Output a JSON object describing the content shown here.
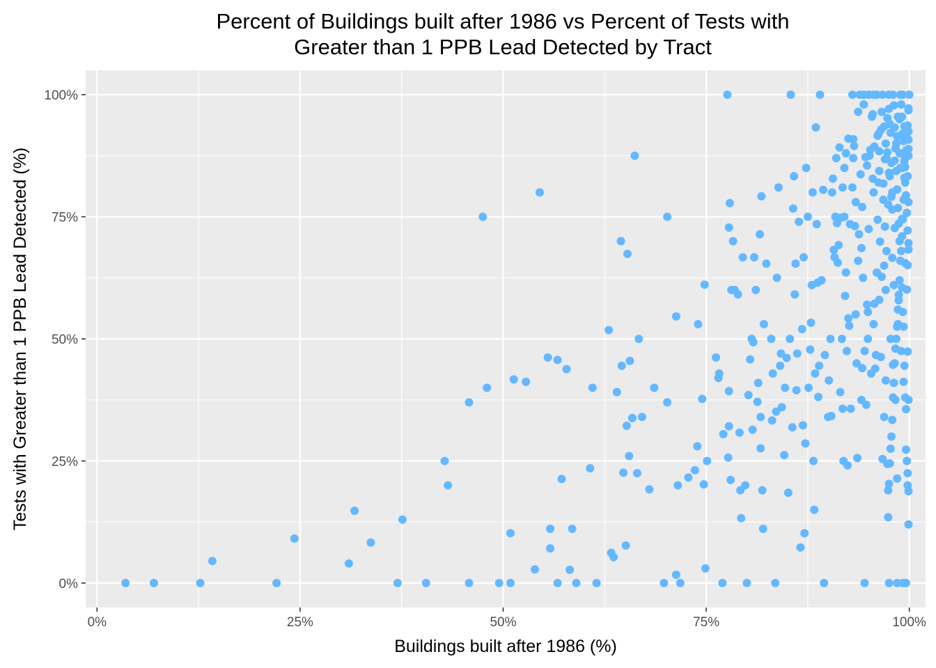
{
  "chart_data": {
    "type": "scatter",
    "title": [
      "Percent of Buildings built after 1986 vs Percent of Tests with",
      "Greater than 1 PPB Lead Detected by Tract"
    ],
    "xlabel": "Buildings built after 1986 (%)",
    "ylabel": "Tests with Greater than 1 PPB Lead Detected (%)",
    "x_ticks": [
      "0%",
      "25%",
      "50%",
      "75%",
      "100%"
    ],
    "y_ticks": [
      "0%",
      "25%",
      "50%",
      "75%",
      "100%"
    ],
    "xlim": [
      -1.4,
      102
    ],
    "ylim": [
      -5,
      105
    ],
    "grid": true,
    "legend": "none",
    "colors": {
      "point": "#63b8ff",
      "panel": "#ebebeb",
      "grid": "#ffffff"
    },
    "points": [
      [
        3.5,
        0
      ],
      [
        7,
        0
      ],
      [
        12.7,
        0
      ],
      [
        22.1,
        0
      ],
      [
        37,
        0
      ],
      [
        40.5,
        0
      ],
      [
        45.8,
        0
      ],
      [
        49.5,
        0
      ],
      [
        50.9,
        0
      ],
      [
        56.7,
        0
      ],
      [
        59,
        0
      ],
      [
        61.5,
        0
      ],
      [
        69.8,
        0
      ],
      [
        71.8,
        0
      ],
      [
        77,
        0
      ],
      [
        80,
        0
      ],
      [
        83.5,
        0
      ],
      [
        89.5,
        0
      ],
      [
        94.5,
        0
      ],
      [
        97.5,
        0
      ],
      [
        98.5,
        0
      ],
      [
        99.2,
        0
      ],
      [
        99.6,
        0
      ],
      [
        14.2,
        4.5
      ],
      [
        24.3,
        9.1
      ],
      [
        31,
        4
      ],
      [
        31.7,
        14.8
      ],
      [
        33.7,
        8.3
      ],
      [
        37.6,
        13
      ],
      [
        42.8,
        25
      ],
      [
        43.2,
        20
      ],
      [
        45.8,
        37
      ],
      [
        47.5,
        75
      ],
      [
        48,
        40
      ],
      [
        50.9,
        10.2
      ],
      [
        51.3,
        41.7
      ],
      [
        52.8,
        41.2
      ],
      [
        54.5,
        80
      ],
      [
        55.5,
        46.2
      ],
      [
        55.8,
        11.1
      ],
      [
        55.8,
        7.1
      ],
      [
        56.7,
        45.7
      ],
      [
        57.2,
        21.3
      ],
      [
        57.8,
        43.8
      ],
      [
        58.2,
        2.7
      ],
      [
        58.5,
        11.1
      ],
      [
        53.9,
        2.8
      ],
      [
        60.7,
        23.5
      ],
      [
        61,
        40
      ],
      [
        63,
        51.8
      ],
      [
        63.3,
        6.2
      ],
      [
        63.6,
        5.3
      ],
      [
        64,
        39.1
      ],
      [
        64.5,
        70
      ],
      [
        64.6,
        44.5
      ],
      [
        64.8,
        22.6
      ],
      [
        65.1,
        7.7
      ],
      [
        65.2,
        32.2
      ],
      [
        65.3,
        67.4
      ],
      [
        65.5,
        26
      ],
      [
        65.6,
        45.5
      ],
      [
        65.9,
        33.8
      ],
      [
        66.2,
        87.5
      ],
      [
        66.5,
        22.5
      ],
      [
        66.7,
        50
      ],
      [
        67.1,
        34
      ],
      [
        68,
        19.2
      ],
      [
        68.6,
        40
      ],
      [
        70.2,
        75
      ],
      [
        70.2,
        37
      ],
      [
        71.3,
        54.6
      ],
      [
        71.3,
        1.7
      ],
      [
        71.5,
        20
      ],
      [
        72.8,
        21.6
      ],
      [
        73.6,
        23.1
      ],
      [
        73.9,
        28
      ],
      [
        74,
        53
      ],
      [
        74.5,
        37.7
      ],
      [
        74.7,
        20.2
      ],
      [
        74.9,
        3
      ],
      [
        74.8,
        61.1
      ],
      [
        75.1,
        25
      ],
      [
        76.2,
        46.2
      ],
      [
        76.5,
        42
      ],
      [
        76.6,
        42.9
      ],
      [
        77.1,
        30.5
      ],
      [
        77.6,
        100
      ],
      [
        77.8,
        39.3
      ],
      [
        77.8,
        32.1
      ],
      [
        77.7,
        25.7
      ],
      [
        77.9,
        77.8
      ],
      [
        77.8,
        72.8
      ],
      [
        78.1,
        60
      ],
      [
        78,
        21.1
      ],
      [
        78.3,
        70
      ],
      [
        78.5,
        60
      ],
      [
        78.9,
        59.1
      ],
      [
        79.1,
        30.8
      ],
      [
        79.2,
        19
      ],
      [
        79.3,
        13.3
      ],
      [
        79.5,
        66.7
      ],
      [
        79.8,
        20
      ],
      [
        80.2,
        38.5
      ],
      [
        80.4,
        45.8
      ],
      [
        80.6,
        50
      ],
      [
        80.7,
        31.4
      ],
      [
        80.8,
        49.3
      ],
      [
        80.9,
        66.7
      ],
      [
        81.1,
        60
      ],
      [
        81.3,
        37.1
      ],
      [
        81.4,
        41
      ],
      [
        81.6,
        71.4
      ],
      [
        81.7,
        34
      ],
      [
        81.7,
        27.6
      ],
      [
        81.8,
        79.2
      ],
      [
        81.9,
        19
      ],
      [
        82,
        11.1
      ],
      [
        82.1,
        53
      ],
      [
        82.4,
        65.4
      ],
      [
        83,
        50
      ],
      [
        83.1,
        33.3
      ],
      [
        83.2,
        42.9
      ],
      [
        83.6,
        35.1
      ],
      [
        83.7,
        62.5
      ],
      [
        83.9,
        81
      ],
      [
        84.1,
        44.5
      ],
      [
        84.2,
        47
      ],
      [
        84.3,
        36
      ],
      [
        84.6,
        26.2
      ],
      [
        84.7,
        40
      ],
      [
        84.9,
        46.1
      ],
      [
        85.1,
        18.5
      ],
      [
        85.3,
        50
      ],
      [
        85.4,
        100
      ],
      [
        85.6,
        31.9
      ],
      [
        85.7,
        76.7
      ],
      [
        85.8,
        83.3
      ],
      [
        85.9,
        59.1
      ],
      [
        86,
        65.4
      ],
      [
        86.1,
        39.5
      ],
      [
        86.2,
        47
      ],
      [
        86.4,
        74
      ],
      [
        86.6,
        7.3
      ],
      [
        86.8,
        52
      ],
      [
        86.9,
        32.3
      ],
      [
        87,
        66.7
      ],
      [
        87.1,
        10.2
      ],
      [
        87.2,
        28.6
      ],
      [
        87.3,
        85
      ],
      [
        87.5,
        75
      ],
      [
        87.6,
        40
      ],
      [
        87.8,
        47.8
      ],
      [
        87.9,
        53.3
      ],
      [
        88,
        61
      ],
      [
        88.1,
        80
      ],
      [
        88.2,
        25
      ],
      [
        88.3,
        15
      ],
      [
        88.4,
        42.9
      ],
      [
        88.5,
        93.3
      ],
      [
        88.6,
        73.5
      ],
      [
        88.7,
        61.5
      ],
      [
        88.8,
        38.1
      ],
      [
        88.9,
        44.5
      ],
      [
        89,
        100
      ],
      [
        89.2,
        62
      ],
      [
        89.4,
        80.5
      ],
      [
        89.6,
        46.7
      ],
      [
        90,
        34
      ],
      [
        90.1,
        41.5
      ],
      [
        90.3,
        50
      ],
      [
        90.4,
        34.2
      ],
      [
        90.5,
        80
      ],
      [
        90.6,
        82.8
      ],
      [
        90.7,
        68.2
      ],
      [
        90.8,
        66.7
      ],
      [
        90.9,
        75
      ],
      [
        91,
        87
      ],
      [
        91.1,
        73.7
      ],
      [
        91.2,
        65.6
      ],
      [
        91.3,
        69.2
      ],
      [
        91.4,
        89.2
      ],
      [
        91.5,
        39.1
      ],
      [
        91.6,
        74.8
      ],
      [
        91.7,
        50
      ],
      [
        91.8,
        35.7
      ],
      [
        91.9,
        25
      ],
      [
        92,
        75
      ],
      [
        92.1,
        58.8
      ],
      [
        92.2,
        63.6
      ],
      [
        92.3,
        47.5
      ],
      [
        92.4,
        24.1
      ],
      [
        92.5,
        54.2
      ],
      [
        92.6,
        52.7
      ],
      [
        92.7,
        73.5
      ],
      [
        92.8,
        35.7
      ],
      [
        93,
        81
      ],
      [
        93.1,
        90.9
      ],
      [
        93.2,
        89.5
      ],
      [
        93.3,
        73.1
      ],
      [
        93.4,
        55
      ],
      [
        93.5,
        45
      ],
      [
        93.6,
        25.6
      ],
      [
        93.7,
        66
      ],
      [
        93.8,
        71.4
      ],
      [
        93.9,
        100
      ],
      [
        94,
        83.7
      ],
      [
        94.1,
        68.6
      ],
      [
        94.2,
        44
      ],
      [
        94.3,
        62.5
      ],
      [
        94.4,
        100
      ],
      [
        94.5,
        47.5
      ],
      [
        94.6,
        87.2
      ],
      [
        94.7,
        36.5
      ],
      [
        94.8,
        57
      ],
      [
        94.9,
        55.5
      ],
      [
        95,
        72.5
      ],
      [
        95.1,
        87.5
      ],
      [
        95.2,
        88.7
      ],
      [
        95.3,
        42.9
      ],
      [
        95.4,
        95.5
      ],
      [
        95.5,
        82.8
      ],
      [
        95.6,
        80
      ],
      [
        95.7,
        57.2
      ],
      [
        95.8,
        43.9
      ],
      [
        95.9,
        46.7
      ],
      [
        96,
        63.6
      ],
      [
        96.1,
        74.4
      ],
      [
        96.2,
        92
      ],
      [
        96.3,
        88.4
      ],
      [
        96.4,
        69.9
      ],
      [
        96.5,
        46.3
      ],
      [
        96.6,
        62.7
      ],
      [
        96.7,
        25.4
      ],
      [
        96.8,
        81.8
      ],
      [
        96.9,
        34
      ],
      [
        97,
        86.8
      ],
      [
        97.1,
        41.5
      ],
      [
        97.2,
        68
      ],
      [
        97.3,
        24.4
      ],
      [
        97.4,
        19
      ],
      [
        97.5,
        100
      ],
      [
        97.6,
        83.3
      ],
      [
        97.7,
        50
      ],
      [
        97.8,
        79.1
      ],
      [
        97.9,
        66.6
      ],
      [
        98,
        44.7
      ],
      [
        98.1,
        61
      ],
      [
        98.2,
        72.7
      ],
      [
        98.3,
        37.5
      ],
      [
        98.4,
        90
      ],
      [
        98.5,
        21.4
      ],
      [
        98.6,
        53
      ],
      [
        98.7,
        57.9
      ],
      [
        98.8,
        95
      ],
      [
        98.9,
        85
      ],
      [
        99,
        47.5
      ],
      [
        99.1,
        74.6
      ],
      [
        99.2,
        100
      ],
      [
        99.3,
        41.2
      ],
      [
        99.4,
        86.4
      ],
      [
        99.5,
        65.5
      ],
      [
        99.6,
        35.6
      ],
      [
        99.7,
        60.1
      ],
      [
        99.8,
        22.5
      ],
      [
        99.9,
        88.9
      ],
      [
        95.5,
        96
      ],
      [
        96.1,
        91.6
      ],
      [
        96.3,
        84.4
      ],
      [
        96.5,
        92.8
      ],
      [
        96.7,
        100
      ],
      [
        96.9,
        93.5
      ],
      [
        97.1,
        90
      ],
      [
        97.3,
        88.2
      ],
      [
        97.5,
        97.1
      ],
      [
        97.6,
        94
      ],
      [
        97.7,
        92.2
      ],
      [
        97.8,
        86
      ],
      [
        97.9,
        76.5
      ],
      [
        98,
        100
      ],
      [
        98.1,
        97.8
      ],
      [
        98.2,
        93.3
      ],
      [
        98.3,
        89
      ],
      [
        98.4,
        84.4
      ],
      [
        98.5,
        80.6
      ],
      [
        98.6,
        76.8
      ],
      [
        98.7,
        73.6
      ],
      [
        98.8,
        70
      ],
      [
        98.9,
        100
      ],
      [
        99,
        98
      ],
      [
        99.1,
        95.5
      ],
      [
        99.2,
        92
      ],
      [
        99.3,
        90.5
      ],
      [
        99.4,
        87.5
      ],
      [
        99.5,
        82
      ],
      [
        99.6,
        79.4
      ],
      [
        99.7,
        75.8
      ],
      [
        99.8,
        72.2
      ],
      [
        99.9,
        69.6
      ],
      [
        100,
        100
      ],
      [
        99.9,
        96.8
      ],
      [
        99.8,
        93.7
      ],
      [
        99.7,
        91.2
      ],
      [
        99.6,
        88.6
      ],
      [
        99.5,
        85.2
      ],
      [
        99.4,
        83
      ],
      [
        99.3,
        78.5
      ],
      [
        99.2,
        74.5
      ],
      [
        99.1,
        71
      ],
      [
        99,
        68
      ],
      [
        98.9,
        66
      ],
      [
        98.8,
        62
      ],
      [
        98.7,
        59
      ],
      [
        98.6,
        56
      ],
      [
        98.5,
        52.5
      ],
      [
        98.4,
        50
      ],
      [
        98.3,
        48
      ],
      [
        98.2,
        45
      ],
      [
        98.1,
        41
      ],
      [
        98,
        38
      ],
      [
        97.9,
        33.4
      ],
      [
        97.8,
        30
      ],
      [
        97.7,
        27.5
      ],
      [
        97.6,
        24.5
      ],
      [
        97.5,
        20.3
      ],
      [
        97.4,
        13.5
      ],
      [
        99.9,
        12
      ],
      [
        99.8,
        20
      ],
      [
        99.7,
        25
      ],
      [
        99.6,
        27.3
      ],
      [
        99.5,
        38
      ],
      [
        99.4,
        44.5
      ],
      [
        99.3,
        52.5
      ],
      [
        99.2,
        55.5
      ],
      [
        99.1,
        60.5
      ],
      [
        99.9,
        37.5
      ],
      [
        99.8,
        47.4
      ],
      [
        99.9,
        18.8
      ],
      [
        99.8,
        65.1
      ],
      [
        99.8,
        83.3
      ],
      [
        99.9,
        78
      ],
      [
        99.9,
        68.3
      ],
      [
        99.9,
        90.8
      ],
      [
        99.9,
        92.5
      ],
      [
        99.9,
        87.5
      ],
      [
        99.9,
        97.2
      ],
      [
        96,
        100
      ],
      [
        95.6,
        100
      ],
      [
        95,
        100
      ],
      [
        94.4,
        98
      ],
      [
        93.7,
        96.5
      ],
      [
        93,
        100
      ],
      [
        92.5,
        91
      ],
      [
        92,
        85
      ],
      [
        91.8,
        81
      ],
      [
        92.2,
        88
      ],
      [
        93.1,
        87
      ],
      [
        93.4,
        78
      ],
      [
        94.2,
        77
      ],
      [
        94.8,
        85.5
      ],
      [
        95.7,
        89.4
      ],
      [
        96.2,
        82
      ],
      [
        96.8,
        78.5
      ],
      [
        97.2,
        87
      ],
      [
        97.5,
        84
      ],
      [
        97.9,
        80
      ],
      [
        98.2,
        86.5
      ],
      [
        98.5,
        91.5
      ],
      [
        98.8,
        88
      ],
      [
        99.1,
        85
      ],
      [
        99.4,
        93.5
      ],
      [
        98.6,
        95.5
      ],
      [
        97.3,
        95.2
      ],
      [
        96.6,
        96.5
      ],
      [
        97,
        73
      ],
      [
        97.4,
        77.5
      ],
      [
        96.9,
        65
      ],
      [
        97.1,
        60
      ],
      [
        96.3,
        58
      ],
      [
        95.6,
        53
      ],
      [
        94.9,
        50
      ],
      [
        94.1,
        37.5
      ]
    ]
  }
}
